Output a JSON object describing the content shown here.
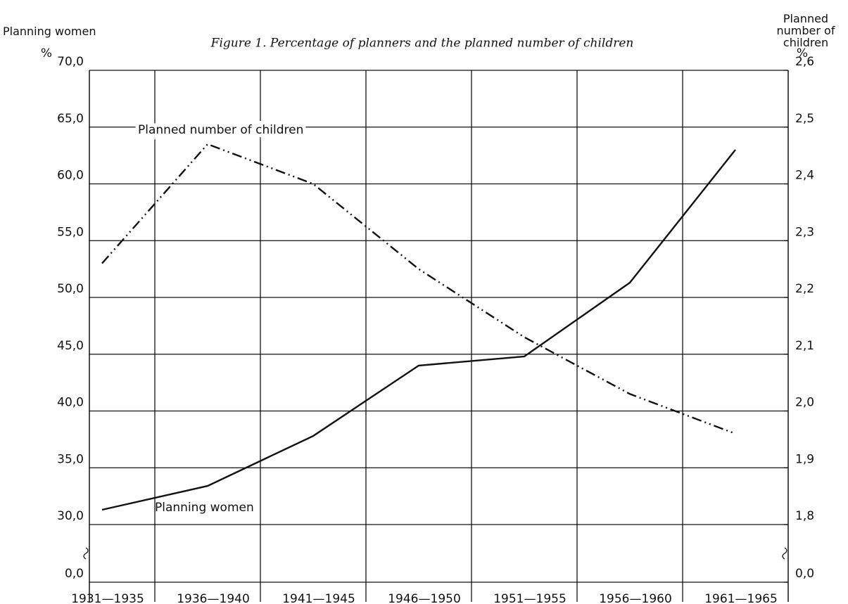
{
  "chart_data": {
    "type": "line",
    "title": "Figure 1. Percentage of planners and the planned number of children",
    "y_label": "Planning women",
    "y_unit": "%",
    "y2_label": "Planned number of children",
    "y2_unit": "%",
    "categories": [
      "1931—1935",
      "1936—1940",
      "1941—1945",
      "1946—1950",
      "1951—1955",
      "1956—1960",
      "1961—1965"
    ],
    "series": [
      {
        "name": "Planning women",
        "color": "#111111",
        "style": "solid",
        "values": [
          31.3,
          33.4,
          37.8,
          44.0,
          44.8,
          51.3,
          63.0
        ]
      },
      {
        "name": "Planned number of children",
        "color": "#111111",
        "style": "dash-dot-dot",
        "axis": "y2",
        "values": [
          2.26,
          2.47,
          2.4,
          2.25,
          2.13,
          2.03,
          1.96
        ]
      }
    ],
    "ylim": [
      0,
      70
    ],
    "y_break": [
      0,
      30
    ],
    "yticks": [
      {
        "value": 0,
        "label": "0,0"
      },
      {
        "value": 30,
        "label": "30,0"
      },
      {
        "value": 35,
        "label": "35,0"
      },
      {
        "value": 40,
        "label": "40,0"
      },
      {
        "value": 45,
        "label": "45,0"
      },
      {
        "value": 50,
        "label": "50,0"
      },
      {
        "value": 55,
        "label": "55,0"
      },
      {
        "value": 60,
        "label": "60,0"
      },
      {
        "value": 65,
        "label": "65,0"
      },
      {
        "value": 70,
        "label": "70,0"
      }
    ],
    "y2lim": [
      0,
      2.6
    ],
    "y2_break": [
      0,
      1.8
    ],
    "y2ticks": [
      {
        "value": 0,
        "label": "0,0"
      },
      {
        "value": 1.8,
        "label": "1,8"
      },
      {
        "value": 1.9,
        "label": "1,9"
      },
      {
        "value": 2.0,
        "label": "2,0"
      },
      {
        "value": 2.1,
        "label": "2,1"
      },
      {
        "value": 2.2,
        "label": "2,2"
      },
      {
        "value": 2.3,
        "label": "2,3"
      },
      {
        "value": 2.4,
        "label": "2,4"
      },
      {
        "value": 2.5,
        "label": "2,5"
      },
      {
        "value": 2.6,
        "label": "2,6"
      }
    ],
    "grid": true
  }
}
